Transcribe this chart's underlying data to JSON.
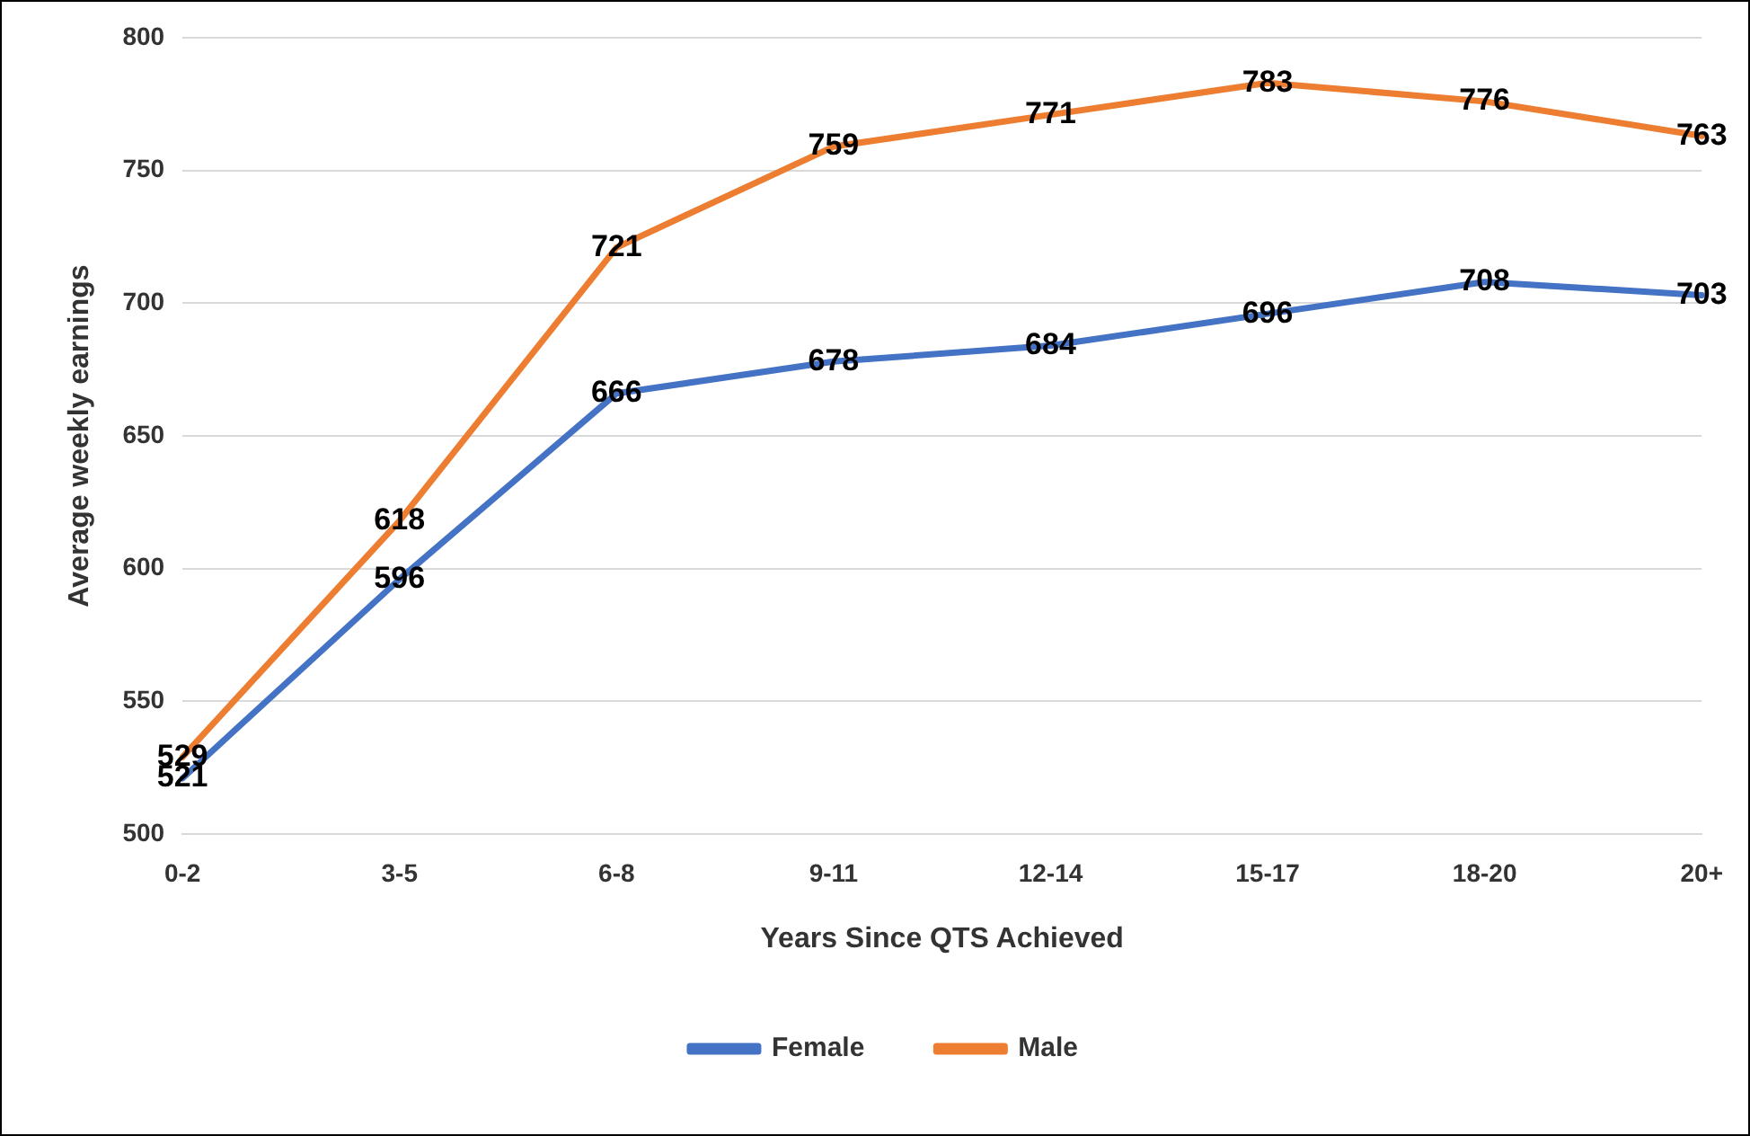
{
  "chart_data": {
    "type": "line",
    "xlabel": "Years Since QTS Achieved",
    "ylabel": "Average weekly earnings",
    "categories": [
      "0-2",
      "3-5",
      "6-8",
      "9-11",
      "12-14",
      "15-17",
      "18-20",
      "20+"
    ],
    "series": [
      {
        "name": "Female",
        "color": "#4472c4",
        "values": [
          521,
          596,
          666,
          678,
          684,
          696,
          708,
          703
        ]
      },
      {
        "name": "Male",
        "color": "#ed7d31",
        "values": [
          529,
          618,
          721,
          759,
          771,
          783,
          776,
          763
        ]
      }
    ],
    "ylim": [
      500,
      800
    ],
    "yticks": [
      500,
      550,
      600,
      650,
      700,
      750,
      800
    ],
    "grid": "y",
    "legend": "bottom",
    "marker": "none",
    "line_style": "solid",
    "data_labels": true
  }
}
